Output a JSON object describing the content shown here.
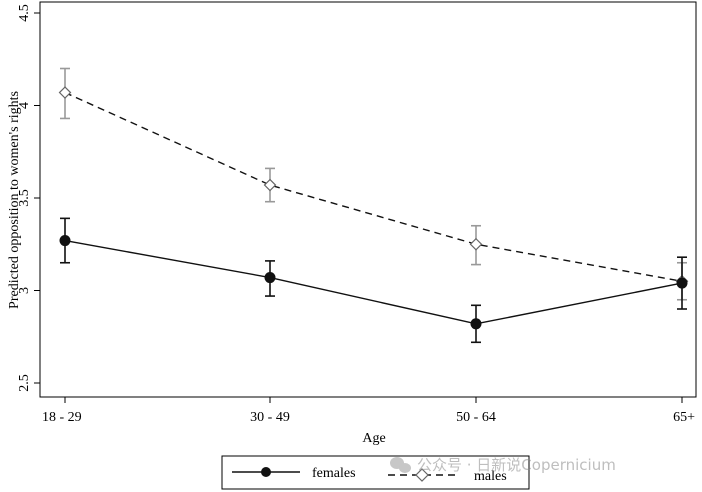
{
  "chart_data": {
    "type": "line",
    "title": "",
    "xlabel": "Age",
    "ylabel": "Predicted opposition to women's rights",
    "categories": [
      "18 - 29",
      "30 - 49",
      "50 - 64",
      "65+"
    ],
    "yticks": [
      "2.5",
      "3",
      "3.5",
      "4",
      "4.5"
    ],
    "ylim": [
      2.5,
      4.5
    ],
    "grid": false,
    "legend_position": "bottom-center",
    "series": [
      {
        "name": "females",
        "values": [
          3.27,
          3.07,
          2.82,
          3.04
        ],
        "ci_low": [
          3.15,
          2.97,
          2.72,
          2.9
        ],
        "ci_high": [
          3.39,
          3.16,
          2.92,
          3.18
        ],
        "line_style": "solid",
        "marker": "filled-circle",
        "color": "#111111",
        "errorbar_color": "#111111"
      },
      {
        "name": "males",
        "values": [
          4.07,
          3.57,
          3.25,
          3.05
        ],
        "ci_low": [
          3.93,
          3.48,
          3.14,
          2.95
        ],
        "ci_high": [
          4.2,
          3.66,
          3.35,
          3.15
        ],
        "line_style": "dashed",
        "marker": "hollow-diamond",
        "color": "#111111",
        "errorbar_color": "#999999"
      }
    ]
  },
  "watermark": {
    "text": "公众号 · 日新说Copernicium",
    "icon": "wechat-icon"
  }
}
